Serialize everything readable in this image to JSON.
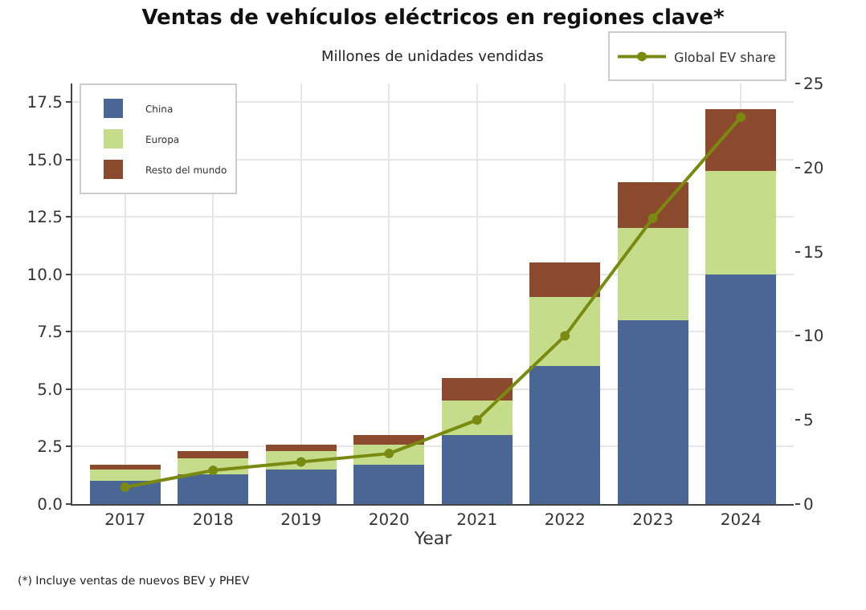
{
  "chart_data": {
    "type": "bar",
    "title": "Ventas de vehículos eléctricos en regiones clave*",
    "subtitle": "Millones de unidades vendidas",
    "xlabel": "Year",
    "categories": [
      "2017",
      "2018",
      "2019",
      "2020",
      "2021",
      "2022",
      "2023",
      "2024"
    ],
    "stacked": true,
    "series": [
      {
        "name": "China",
        "color": "#4a6694",
        "values": [
          1.0,
          1.3,
          1.5,
          1.7,
          3.0,
          6.0,
          8.0,
          10.0
        ]
      },
      {
        "name": "Europa",
        "color": "#c5dc8a",
        "values": [
          0.5,
          0.7,
          0.8,
          0.9,
          1.5,
          3.0,
          4.0,
          4.5
        ]
      },
      {
        "name": "Resto del mundo",
        "color": "#8b4a2e",
        "values": [
          0.2,
          0.3,
          0.3,
          0.4,
          1.0,
          1.5,
          2.0,
          2.7
        ]
      },
      {
        "name": "Global EV share",
        "type": "line",
        "axis": "y2",
        "color": "#7a8a10",
        "values": [
          1,
          2,
          2.5,
          3,
          5,
          10,
          17,
          23
        ]
      }
    ],
    "ylim": [
      0,
      18.3
    ],
    "yticks": [
      {
        "value": 0,
        "label": "0.0"
      },
      {
        "value": 2.5,
        "label": "2.5"
      },
      {
        "value": 5,
        "label": "5.0"
      },
      {
        "value": 7.5,
        "label": "7.5"
      },
      {
        "value": 10,
        "label": "10.0"
      },
      {
        "value": 12.5,
        "label": "12.5"
      },
      {
        "value": 15,
        "label": "15.0"
      },
      {
        "value": 17.5,
        "label": "17.5"
      }
    ],
    "y2lim": [
      0,
      25
    ],
    "y2ticks": [
      0,
      5,
      10,
      15,
      20,
      25
    ],
    "grid": true,
    "legend": "top left",
    "marker": "circle",
    "line_style": "solid",
    "annotations": [
      "(*) Incluye ventas de nuevos BEV y PHEV"
    ]
  }
}
